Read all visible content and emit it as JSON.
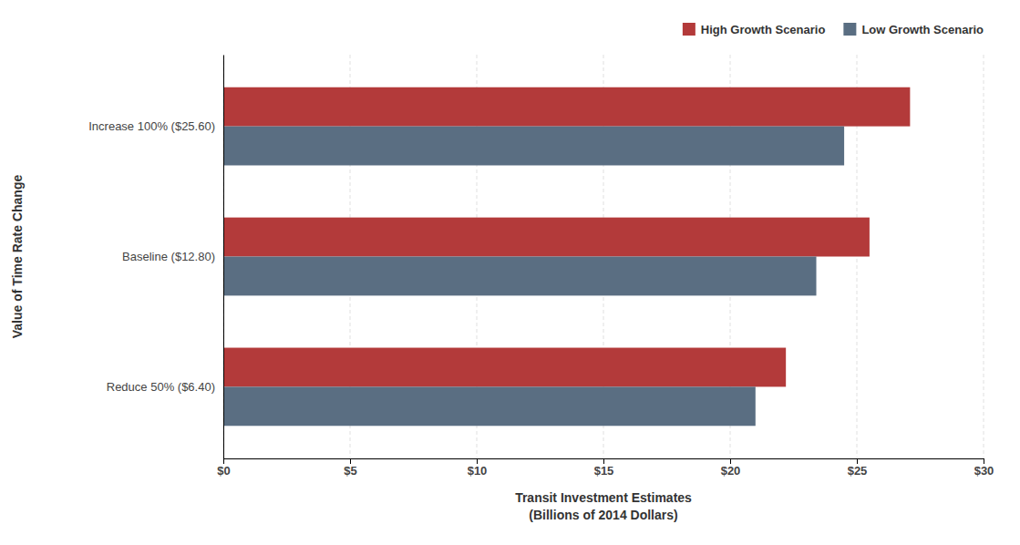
{
  "chart_data": {
    "type": "bar",
    "orientation": "horizontal",
    "categories": [
      "Increase 100% ($25.60)",
      "Baseline ($12.80)",
      "Reduce 50% ($6.40)"
    ],
    "series": [
      {
        "name": "High Growth Scenario",
        "color": "#b33a3a",
        "values": [
          27.1,
          25.5,
          22.2
        ]
      },
      {
        "name": "Low Growth Scenario",
        "color": "#5a6e82",
        "values": [
          24.5,
          23.4,
          21.0
        ]
      }
    ],
    "xlabel": [
      "Transit Investment Estimates",
      "(Billions of 2014 Dollars)"
    ],
    "ylabel": "Value of Time Rate Change",
    "xlim": [
      0,
      30
    ],
    "xticks": [
      {
        "value": 0,
        "label": "$0"
      },
      {
        "value": 5,
        "label": "$5"
      },
      {
        "value": 10,
        "label": "$10"
      },
      {
        "value": 15,
        "label": "$15"
      },
      {
        "value": 20,
        "label": "$20"
      },
      {
        "value": 25,
        "label": "$25"
      },
      {
        "value": 30,
        "label": "$30"
      }
    ],
    "grid": true,
    "legend": "top-right"
  }
}
